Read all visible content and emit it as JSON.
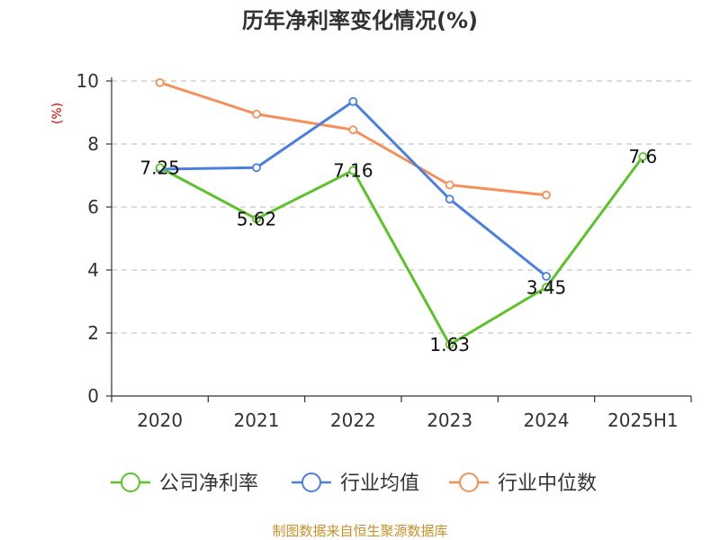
{
  "chart_data": {
    "type": "line",
    "title": "历年净利率变化情况(%)",
    "ylabel": "(%)",
    "xlabel": "",
    "categories": [
      "2020",
      "2021",
      "2022",
      "2023",
      "2024",
      "2025H1"
    ],
    "ylim": [
      0,
      10
    ],
    "yticks": [
      0,
      2,
      4,
      6,
      8,
      10
    ],
    "grid": true,
    "legend_position": "bottom",
    "series": [
      {
        "name": "公司净利率",
        "color": "#5cc22a",
        "values": [
          7.25,
          5.62,
          7.16,
          1.63,
          3.45,
          7.6
        ],
        "labels": [
          "7.25",
          "5.62",
          "7.16",
          "1.63",
          "3.45",
          "7.6"
        ]
      },
      {
        "name": "行业均值",
        "color": "#4a7fe0",
        "values": [
          7.2,
          7.25,
          9.35,
          6.25,
          3.8,
          null
        ]
      },
      {
        "name": "行业中位数",
        "color": "#f5905a",
        "values": [
          9.95,
          8.95,
          8.45,
          6.7,
          6.38,
          null
        ]
      }
    ]
  },
  "source_text": "制图数据来自恒生聚源数据库"
}
